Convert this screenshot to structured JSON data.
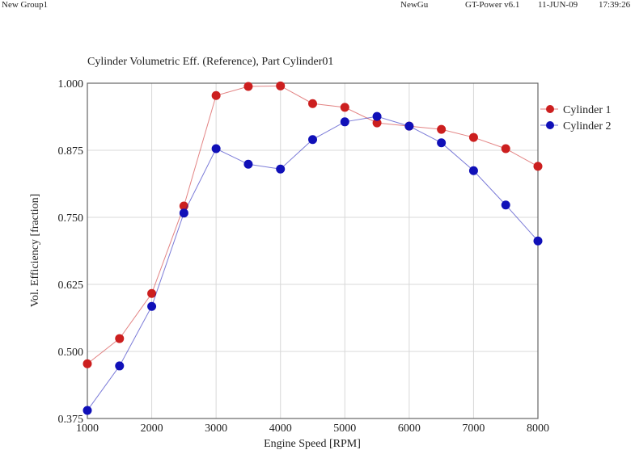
{
  "header": {
    "group": "New Group1",
    "name": "NewGu",
    "app": "GT-Power v6.1",
    "date": "11-JUN-09",
    "time": "17:39:26"
  },
  "colors": {
    "cyl1": "#cc1f1f",
    "cyl2": "#1010b8",
    "grid": "#d8d8d8"
  },
  "chart_data": {
    "type": "line",
    "title": "Cylinder Volumetric Eff. (Reference), Part Cylinder01",
    "xlabel": "Engine Speed [RPM]",
    "ylabel": "Vol. Efficiency [fraction]",
    "xlim": [
      1000,
      8000
    ],
    "ylim": [
      0.375,
      1.0
    ],
    "xticks": [
      "1000",
      "2000",
      "3000",
      "4000",
      "5000",
      "6000",
      "7000",
      "8000"
    ],
    "yticks": [
      "0.375",
      "0.500",
      "0.625",
      "0.750",
      "0.875",
      "1.000"
    ],
    "grid": true,
    "legend_position": "right-top",
    "x": [
      1000,
      1500,
      2000,
      2500,
      3000,
      3500,
      4000,
      4500,
      5000,
      5500,
      6000,
      6500,
      7000,
      7500,
      8000
    ],
    "series": [
      {
        "name": "Cylinder 1",
        "values": [
          0.477,
          0.524,
          0.608,
          0.771,
          0.977,
          0.994,
          0.995,
          0.962,
          0.955,
          0.926,
          0.92,
          0.914,
          0.899,
          0.878,
          0.845
        ]
      },
      {
        "name": "Cylinder 2",
        "values": [
          0.39,
          0.473,
          0.584,
          0.758,
          0.878,
          0.849,
          0.84,
          0.895,
          0.928,
          0.938,
          0.92,
          0.889,
          0.837,
          0.773,
          0.706
        ]
      }
    ]
  }
}
